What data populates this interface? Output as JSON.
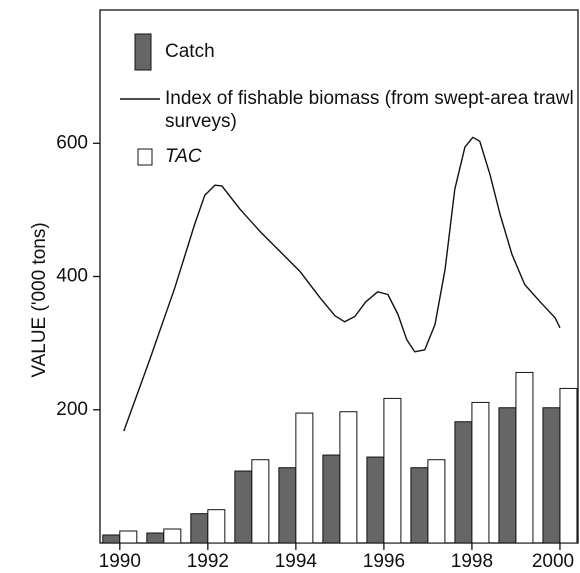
{
  "chart_data": {
    "type": "bar+line",
    "y_label": "VALUE ('000 tons)",
    "x": [
      1990,
      1991,
      1992,
      1993,
      1994,
      1995,
      1996,
      1997,
      1998,
      1999,
      2000
    ],
    "xlim": [
      1989.55,
      2000.41
    ],
    "xticks": [
      1990,
      1992,
      1994,
      1996,
      1998,
      2000
    ],
    "ylim": [
      0,
      800
    ],
    "yticks": [
      200,
      400,
      600
    ],
    "series": [
      {
        "name": "Catch",
        "kind": "bar",
        "color": "#666666",
        "values": [
          12,
          15,
          44,
          108,
          113,
          132,
          129,
          113,
          182,
          203,
          203
        ]
      },
      {
        "name": "Index of fishable biomass (from swept-area trawl surveys)",
        "kind": "line",
        "color": "#111111",
        "x": [
          1990.09,
          1990.68,
          1991.25,
          1991.7,
          1991.93,
          1992.16,
          1992.32,
          1992.73,
          1993.18,
          1994.09,
          1994.55,
          1994.89,
          1995.11,
          1995.34,
          1995.59,
          1995.86,
          1996.09,
          1996.32,
          1996.52,
          1996.7,
          1996.93,
          1997.16,
          1997.39,
          1997.61,
          1997.84,
          1998.02,
          1998.18,
          1998.41,
          1998.64,
          1998.91,
          1999.2,
          1999.55,
          1999.89,
          2000
        ],
        "values": [
          168,
          275,
          383,
          478,
          522,
          537,
          536,
          501,
          468,
          408,
          368,
          341,
          332,
          340,
          362,
          377,
          373,
          343,
          305,
          287,
          290,
          328,
          411,
          531,
          594,
          609,
          603,
          553,
          493,
          433,
          388,
          362,
          338,
          323
        ]
      },
      {
        "name": "TAC",
        "kind": "bar",
        "color": "#ffffff",
        "values": [
          18,
          21,
          50,
          125,
          195,
          197,
          217,
          125,
          211,
          256,
          232
        ]
      }
    ]
  }
}
